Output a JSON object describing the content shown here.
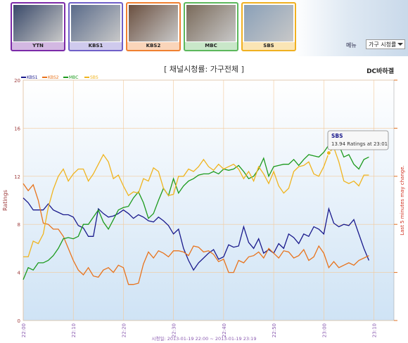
{
  "channels": [
    "YTN",
    "KBS1",
    "KBS2",
    "MBC",
    "SBS"
  ],
  "menu": "메뉴",
  "dropdown": "가구 시청률",
  "chart_data": {
    "type": "line",
    "title": "[ 채널시청률: 가구전체 ]",
    "logo": "DC바하겔",
    "ylabel": "Ratings",
    "right_note": "Last 5 minutes may change.",
    "footer": "시청일: 2013-01-19 22:00 ~ 2013-01-19 23:19",
    "x": [
      "22:00",
      "22:01",
      "22:02",
      "22:03",
      "22:04",
      "22:05",
      "22:06",
      "22:07",
      "22:08",
      "22:09",
      "22:10",
      "22:11",
      "22:12",
      "22:13",
      "22:14",
      "22:15",
      "22:16",
      "22:17",
      "22:18",
      "22:19",
      "22:20",
      "22:21",
      "22:22",
      "22:23",
      "22:24",
      "22:25",
      "22:26",
      "22:27",
      "22:28",
      "22:29",
      "22:30",
      "22:31",
      "22:32",
      "22:33",
      "22:34",
      "22:35",
      "22:36",
      "22:37",
      "22:38",
      "22:39",
      "22:40",
      "22:41",
      "22:42",
      "22:43",
      "22:44",
      "22:45",
      "22:46",
      "22:47",
      "22:48",
      "22:49",
      "22:50",
      "22:51",
      "22:52",
      "22:53",
      "22:54",
      "22:55",
      "22:56",
      "22:57",
      "22:58",
      "22:59",
      "23:00",
      "23:01",
      "23:02",
      "23:03",
      "23:04",
      "23:05",
      "23:06",
      "23:07",
      "23:08",
      "23:09"
    ],
    "series": [
      {
        "name": "KBS1",
        "color": "#1a1a8c",
        "values": [
          10.2,
          9.8,
          9.2,
          9.2,
          9.2,
          9.7,
          9.2,
          9.0,
          8.8,
          8.8,
          8.6,
          7.9,
          7.7,
          7.0,
          7.0,
          9.3,
          8.9,
          8.6,
          8.7,
          8.9,
          9.2,
          8.9,
          8.5,
          8.8,
          8.6,
          8.3,
          8.2,
          8.6,
          8.3,
          7.9,
          7.2,
          7.6,
          6.0,
          5.0,
          4.2,
          4.8,
          5.2,
          5.6,
          5.9,
          5.1,
          5.3,
          6.3,
          6.1,
          6.2,
          7.8,
          6.5,
          6.0,
          6.8,
          5.6,
          5.9,
          5.6,
          6.4,
          6.0,
          7.2,
          6.9,
          6.4,
          7.2,
          7.0,
          7.8,
          7.6,
          7.2,
          9.3,
          8.1,
          7.8,
          8.0,
          7.9,
          8.4,
          7.2,
          6.0,
          5.0
        ]
      },
      {
        "name": "KBS2",
        "color": "#e8731c",
        "values": [
          11.4,
          10.8,
          11.3,
          10.0,
          8.1,
          8.0,
          7.6,
          7.6,
          7.0,
          6.0,
          5.0,
          4.2,
          3.8,
          4.4,
          3.7,
          3.6,
          4.2,
          4.4,
          4.0,
          4.6,
          4.4,
          3.0,
          3.0,
          3.1,
          4.7,
          5.7,
          5.2,
          5.8,
          5.6,
          5.3,
          5.8,
          5.8,
          5.7,
          5.4,
          6.2,
          6.1,
          5.7,
          5.8,
          5.5,
          4.9,
          5.1,
          4.0,
          4.0,
          5.0,
          4.8,
          5.3,
          5.4,
          5.7,
          5.2,
          6.0,
          5.6,
          5.2,
          5.8,
          5.7,
          5.2,
          5.4,
          5.9,
          5.0,
          5.3,
          6.2,
          5.6,
          4.4,
          4.9,
          4.4,
          4.6,
          4.8,
          4.6,
          5.0,
          5.2,
          5.4
        ]
      },
      {
        "name": "MBC",
        "color": "#1c9a1c",
        "values": [
          3.4,
          4.4,
          4.2,
          4.8,
          4.8,
          5.0,
          5.4,
          6.0,
          6.8,
          6.9,
          6.8,
          7.0,
          8.0,
          8.0,
          8.6,
          9.2,
          8.2,
          7.6,
          8.4,
          9.2,
          9.4,
          9.5,
          10.2,
          10.7,
          9.8,
          8.5,
          8.9,
          10.0,
          11.0,
          10.4,
          11.8,
          10.6,
          11.2,
          11.6,
          11.8,
          12.1,
          12.2,
          12.2,
          12.4,
          12.2,
          12.6,
          12.5,
          12.6,
          12.9,
          12.4,
          11.8,
          12.0,
          12.6,
          13.5,
          12.0,
          12.8,
          12.9,
          13.0,
          13.0,
          13.4,
          12.9,
          13.4,
          13.8,
          13.7,
          13.6,
          14.0,
          14.6,
          15.2,
          14.6,
          13.6,
          13.8,
          13.0,
          12.6,
          13.4,
          13.6
        ]
      },
      {
        "name": "SBS",
        "color": "#f0b41e",
        "values": [
          5.3,
          5.3,
          6.6,
          6.4,
          7.2,
          9.4,
          10.9,
          12.0,
          12.6,
          11.6,
          12.2,
          12.6,
          12.6,
          11.6,
          12.2,
          13.0,
          13.8,
          13.2,
          11.8,
          12.1,
          11.2,
          10.4,
          10.7,
          10.6,
          11.8,
          11.6,
          12.7,
          12.4,
          11.0,
          10.4,
          10.5,
          12.0,
          12.0,
          12.6,
          12.4,
          12.8,
          13.4,
          12.8,
          12.5,
          13.0,
          12.6,
          12.8,
          13.0,
          12.6,
          11.8,
          12.4,
          11.6,
          12.8,
          12.2,
          11.4,
          12.4,
          11.2,
          10.6,
          11.0,
          12.4,
          12.8,
          12.9,
          13.2,
          12.2,
          12.0,
          12.8,
          13.94,
          14.4,
          13.2,
          11.6,
          11.4,
          11.6,
          11.2,
          12.1,
          12.1
        ]
      }
    ],
    "xlim": [
      "22:00",
      "23:14"
    ],
    "xticks": [
      "22:00",
      "22:10",
      "22:20",
      "22:30",
      "22:40",
      "22:50",
      "23:00",
      "23:10"
    ],
    "ylim": [
      0,
      20
    ],
    "yticks": [
      0,
      4,
      8,
      12,
      16,
      20
    ],
    "grid": true,
    "tooltip": {
      "series": "SBS",
      "point": 61,
      "text": "13.94 Ratings at 23:01"
    }
  }
}
